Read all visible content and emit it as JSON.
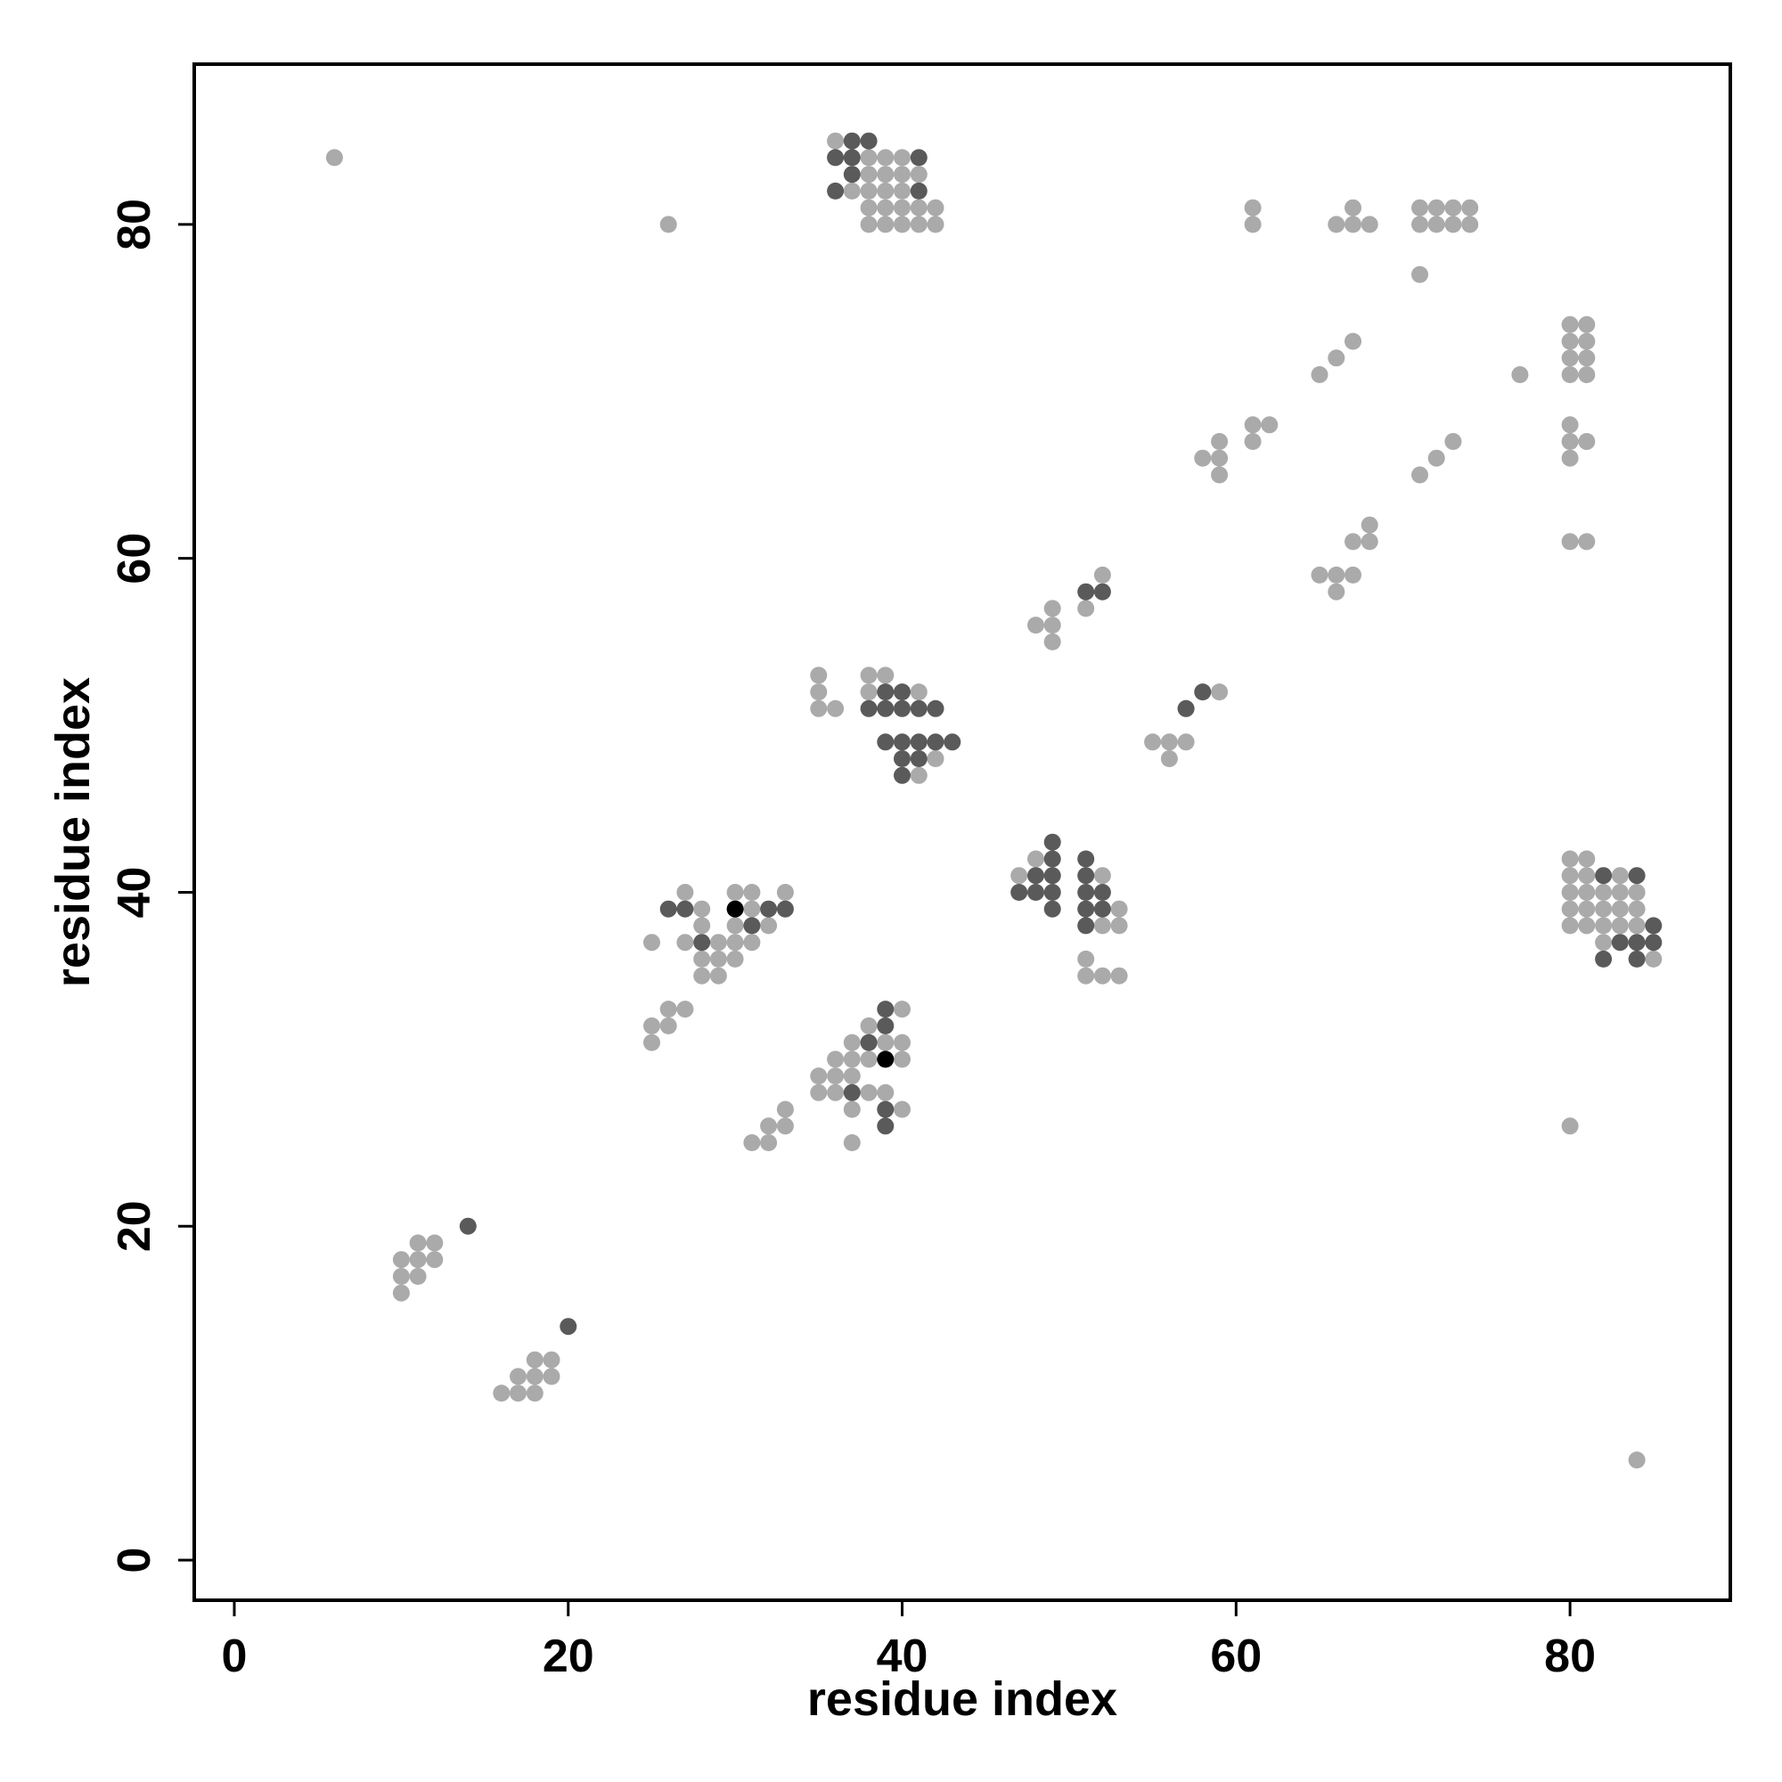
{
  "chart_data": {
    "type": "scatter",
    "title": "",
    "xlabel": "residue index",
    "ylabel": "residue index",
    "xlim": [
      -2.4,
      89.6
    ],
    "ylim": [
      -2.4,
      89.6
    ],
    "x_ticks": [
      0,
      20,
      40,
      60,
      80
    ],
    "y_ticks": [
      0,
      20,
      40,
      60,
      80
    ],
    "grid": false,
    "legend": "none",
    "colors": {
      "light": "#aaaaaa",
      "dark": "#5a5a5a",
      "black": "#000000"
    },
    "series": [
      {
        "color_key": "light",
        "points": [
          [
            6,
            84
          ],
          [
            26,
            80
          ],
          [
            36,
            85
          ],
          [
            38,
            84
          ],
          [
            39,
            84
          ],
          [
            40,
            84
          ],
          [
            38,
            83
          ],
          [
            39,
            83
          ],
          [
            40,
            83
          ],
          [
            41,
            83
          ],
          [
            37,
            82
          ],
          [
            38,
            82
          ],
          [
            39,
            82
          ],
          [
            40,
            82
          ],
          [
            38,
            81
          ],
          [
            39,
            81
          ],
          [
            40,
            81
          ],
          [
            41,
            81
          ],
          [
            42,
            81
          ],
          [
            38,
            80
          ],
          [
            39,
            80
          ],
          [
            40,
            80
          ],
          [
            41,
            80
          ],
          [
            42,
            80
          ],
          [
            61,
            81
          ],
          [
            61,
            80
          ],
          [
            67,
            81
          ],
          [
            66,
            80
          ],
          [
            67,
            80
          ],
          [
            68,
            80
          ],
          [
            71,
            81
          ],
          [
            72,
            81
          ],
          [
            73,
            81
          ],
          [
            74,
            81
          ],
          [
            71,
            80
          ],
          [
            72,
            80
          ],
          [
            73,
            80
          ],
          [
            74,
            80
          ],
          [
            71,
            77
          ],
          [
            80,
            74
          ],
          [
            81,
            74
          ],
          [
            80,
            73
          ],
          [
            81,
            73
          ],
          [
            80,
            72
          ],
          [
            81,
            72
          ],
          [
            80,
            71
          ],
          [
            81,
            71
          ],
          [
            67,
            73
          ],
          [
            66,
            72
          ],
          [
            65,
            71
          ],
          [
            77,
            71
          ],
          [
            80,
            68
          ],
          [
            80,
            67
          ],
          [
            81,
            67
          ],
          [
            80,
            66
          ],
          [
            61,
            68
          ],
          [
            62,
            68
          ],
          [
            61,
            67
          ],
          [
            59,
            67
          ],
          [
            58,
            66
          ],
          [
            59,
            66
          ],
          [
            59,
            65
          ],
          [
            73,
            67
          ],
          [
            72,
            66
          ],
          [
            71,
            65
          ],
          [
            68,
            62
          ],
          [
            67,
            61
          ],
          [
            68,
            61
          ],
          [
            80,
            61
          ],
          [
            81,
            61
          ],
          [
            65,
            59
          ],
          [
            66,
            59
          ],
          [
            67,
            59
          ],
          [
            66,
            58
          ],
          [
            52,
            59
          ],
          [
            49,
            57
          ],
          [
            51,
            57
          ],
          [
            48,
            56
          ],
          [
            49,
            56
          ],
          [
            49,
            55
          ],
          [
            35,
            53
          ],
          [
            38,
            53
          ],
          [
            39,
            53
          ],
          [
            35,
            52
          ],
          [
            38,
            52
          ],
          [
            41,
            52
          ],
          [
            59,
            52
          ],
          [
            35,
            51
          ],
          [
            36,
            51
          ],
          [
            57,
            51
          ],
          [
            55,
            49
          ],
          [
            56,
            49
          ],
          [
            57,
            49
          ],
          [
            56,
            48
          ],
          [
            42,
            48
          ],
          [
            41,
            47
          ],
          [
            48,
            42
          ],
          [
            80,
            42
          ],
          [
            81,
            42
          ],
          [
            47,
            41
          ],
          [
            52,
            41
          ],
          [
            80,
            41
          ],
          [
            81,
            41
          ],
          [
            83,
            41
          ],
          [
            80,
            40
          ],
          [
            81,
            40
          ],
          [
            82,
            40
          ],
          [
            83,
            40
          ],
          [
            84,
            40
          ],
          [
            33,
            40
          ],
          [
            27,
            40
          ],
          [
            31,
            40
          ],
          [
            30,
            40
          ],
          [
            80,
            39
          ],
          [
            81,
            39
          ],
          [
            82,
            39
          ],
          [
            83,
            39
          ],
          [
            84,
            39
          ],
          [
            28,
            39
          ],
          [
            31,
            39
          ],
          [
            53,
            39
          ],
          [
            80,
            38
          ],
          [
            81,
            38
          ],
          [
            82,
            38
          ],
          [
            83,
            38
          ],
          [
            84,
            38
          ],
          [
            28,
            38
          ],
          [
            30,
            38
          ],
          [
            32,
            38
          ],
          [
            52,
            38
          ],
          [
            53,
            38
          ],
          [
            82,
            37
          ],
          [
            85,
            36
          ],
          [
            25,
            37
          ],
          [
            27,
            37
          ],
          [
            29,
            37
          ],
          [
            30,
            37
          ],
          [
            31,
            37
          ],
          [
            28,
            36
          ],
          [
            29,
            36
          ],
          [
            30,
            36
          ],
          [
            51,
            36
          ],
          [
            28,
            35
          ],
          [
            29,
            35
          ],
          [
            51,
            35
          ],
          [
            52,
            35
          ],
          [
            53,
            35
          ],
          [
            40,
            33
          ],
          [
            26,
            33
          ],
          [
            27,
            33
          ],
          [
            25,
            32
          ],
          [
            26,
            32
          ],
          [
            38,
            32
          ],
          [
            25,
            31
          ],
          [
            37,
            31
          ],
          [
            40,
            31
          ],
          [
            39,
            31
          ],
          [
            36,
            30
          ],
          [
            37,
            30
          ],
          [
            38,
            30
          ],
          [
            40,
            30
          ],
          [
            35,
            29
          ],
          [
            36,
            29
          ],
          [
            37,
            29
          ],
          [
            35,
            28
          ],
          [
            36,
            28
          ],
          [
            38,
            28
          ],
          [
            39,
            28
          ],
          [
            37,
            27
          ],
          [
            40,
            27
          ],
          [
            33,
            27
          ],
          [
            32,
            26
          ],
          [
            33,
            26
          ],
          [
            31,
            25
          ],
          [
            32,
            25
          ],
          [
            37,
            25
          ],
          [
            80,
            26
          ],
          [
            11,
            19
          ],
          [
            12,
            19
          ],
          [
            10,
            18
          ],
          [
            11,
            18
          ],
          [
            12,
            18
          ],
          [
            10,
            17
          ],
          [
            11,
            17
          ],
          [
            10,
            16
          ],
          [
            18,
            12
          ],
          [
            19,
            12
          ],
          [
            17,
            11
          ],
          [
            18,
            11
          ],
          [
            19,
            11
          ],
          [
            16,
            10
          ],
          [
            17,
            10
          ],
          [
            18,
            10
          ],
          [
            84,
            6
          ]
        ]
      },
      {
        "color_key": "dark",
        "points": [
          [
            37,
            85
          ],
          [
            38,
            85
          ],
          [
            36,
            84
          ],
          [
            37,
            84
          ],
          [
            41,
            84
          ],
          [
            37,
            83
          ],
          [
            36,
            82
          ],
          [
            41,
            82
          ],
          [
            58,
            52
          ],
          [
            57,
            51
          ],
          [
            51,
            58
          ],
          [
            52,
            58
          ],
          [
            39,
            52
          ],
          [
            40,
            52
          ],
          [
            38,
            51
          ],
          [
            39,
            51
          ],
          [
            40,
            51
          ],
          [
            41,
            51
          ],
          [
            42,
            51
          ],
          [
            40,
            49
          ],
          [
            41,
            49
          ],
          [
            42,
            49
          ],
          [
            43,
            49
          ],
          [
            39,
            49
          ],
          [
            40,
            48
          ],
          [
            41,
            48
          ],
          [
            40,
            47
          ],
          [
            49,
            43
          ],
          [
            49,
            42
          ],
          [
            51,
            42
          ],
          [
            48,
            41
          ],
          [
            49,
            41
          ],
          [
            51,
            41
          ],
          [
            82,
            41
          ],
          [
            84,
            41
          ],
          [
            47,
            40
          ],
          [
            48,
            40
          ],
          [
            49,
            40
          ],
          [
            51,
            40
          ],
          [
            52,
            40
          ],
          [
            26,
            39
          ],
          [
            27,
            39
          ],
          [
            32,
            39
          ],
          [
            33,
            39
          ],
          [
            49,
            39
          ],
          [
            51,
            39
          ],
          [
            52,
            39
          ],
          [
            31,
            38
          ],
          [
            51,
            38
          ],
          [
            85,
            38
          ],
          [
            28,
            37
          ],
          [
            83,
            37
          ],
          [
            84,
            37
          ],
          [
            85,
            37
          ],
          [
            82,
            36
          ],
          [
            84,
            36
          ],
          [
            39,
            33
          ],
          [
            39,
            32
          ],
          [
            38,
            31
          ],
          [
            37,
            28
          ],
          [
            39,
            27
          ],
          [
            39,
            26
          ],
          [
            14,
            20
          ],
          [
            20,
            14
          ]
        ]
      },
      {
        "color_key": "black",
        "points": [
          [
            30,
            39
          ],
          [
            39,
            30
          ]
        ]
      }
    ]
  }
}
